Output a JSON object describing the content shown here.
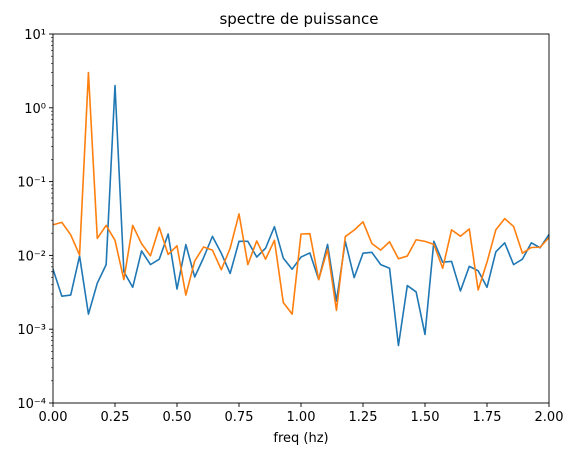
{
  "chart_data": {
    "type": "line",
    "title": "spectre de puissance",
    "xlabel": "freq (hz)",
    "ylabel": "",
    "xlim": [
      0,
      2
    ],
    "ylim": [
      0.0001,
      10
    ],
    "yscale": "log",
    "grid": false,
    "legend": "none",
    "x_ticks": [
      0.0,
      0.25,
      0.5,
      0.75,
      1.0,
      1.25,
      1.5,
      1.75,
      2.0
    ],
    "x_tick_labels": [
      "0.00",
      "0.25",
      "0.50",
      "0.75",
      "1.00",
      "1.25",
      "1.50",
      "1.75",
      "2.00"
    ],
    "y_ticks": [
      0.0001,
      0.001,
      0.01,
      0.1,
      1,
      10
    ],
    "y_tick_labels": [
      "10⁻⁴",
      "10⁻³",
      "10⁻²",
      "10⁻¹",
      "10⁰",
      "10¹"
    ],
    "x": [
      0.0,
      0.0357,
      0.0714,
      0.1071,
      0.1429,
      0.1786,
      0.2143,
      0.25,
      0.2857,
      0.3214,
      0.3571,
      0.3929,
      0.4286,
      0.4643,
      0.5,
      0.5357,
      0.5714,
      0.6071,
      0.6429,
      0.6786,
      0.7143,
      0.75,
      0.7857,
      0.8214,
      0.8571,
      0.8929,
      0.9286,
      0.9643,
      1.0,
      1.0357,
      1.0714,
      1.1071,
      1.1429,
      1.1786,
      1.2143,
      1.25,
      1.2857,
      1.3214,
      1.3571,
      1.3929,
      1.4286,
      1.4643,
      1.5,
      1.5357,
      1.5714,
      1.6071,
      1.6429,
      1.6786,
      1.7143,
      1.75,
      1.7857,
      1.8214,
      1.8571,
      1.8929,
      1.9286,
      1.9643,
      2.0
    ],
    "series": [
      {
        "color": "#1f77b4",
        "values": [
          0.0065,
          0.0028,
          0.0029,
          0.0098,
          0.0016,
          0.0042,
          0.0075,
          2.0,
          0.006,
          0.0037,
          0.0115,
          0.0075,
          0.0089,
          0.0195,
          0.0035,
          0.014,
          0.0051,
          0.0093,
          0.0181,
          0.0107,
          0.0057,
          0.0155,
          0.0155,
          0.0095,
          0.0125,
          0.0245,
          0.0092,
          0.0065,
          0.0095,
          0.0108,
          0.0047,
          0.0141,
          0.0024,
          0.0155,
          0.005,
          0.0107,
          0.011,
          0.0075,
          0.0067,
          0.0006,
          0.0039,
          0.0032,
          0.00085,
          0.0155,
          0.0081,
          0.0083,
          0.0033,
          0.0071,
          0.0062,
          0.0037,
          0.0112,
          0.0148,
          0.0075,
          0.0089,
          0.0148,
          0.0127,
          0.0192
        ]
      },
      {
        "color": "#ff7f0e",
        "values": [
          0.026,
          0.028,
          0.019,
          0.0101,
          3.0,
          0.017,
          0.0255,
          0.016,
          0.0047,
          0.0255,
          0.0144,
          0.0099,
          0.024,
          0.0103,
          0.0135,
          0.0029,
          0.0084,
          0.013,
          0.0118,
          0.0064,
          0.0125,
          0.0365,
          0.0075,
          0.0157,
          0.0089,
          0.016,
          0.0023,
          0.0016,
          0.0195,
          0.0197,
          0.0047,
          0.0121,
          0.0018,
          0.018,
          0.022,
          0.0285,
          0.0145,
          0.0118,
          0.0153,
          0.009,
          0.0098,
          0.0163,
          0.0155,
          0.0141,
          0.0067,
          0.0222,
          0.0182,
          0.0228,
          0.0034,
          0.0081,
          0.0223,
          0.0315,
          0.0247,
          0.0107,
          0.0128,
          0.0129,
          0.0175
        ]
      }
    ]
  }
}
